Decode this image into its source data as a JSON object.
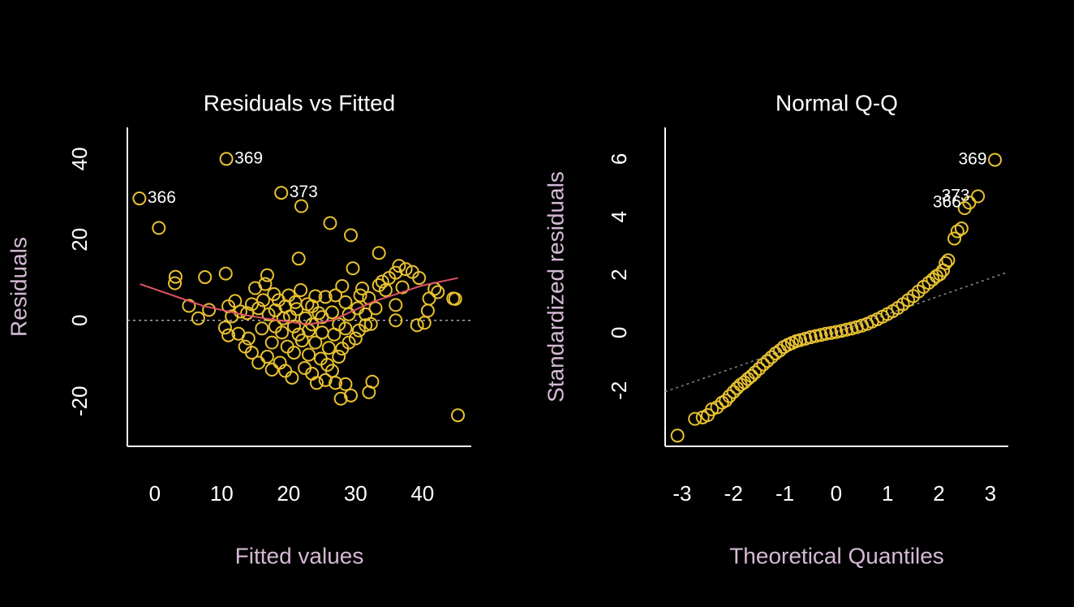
{
  "chart_data": [
    {
      "type": "scatter",
      "title": "Residuals vs Fitted",
      "x_label": "Fitted values",
      "y_label": "Residuals",
      "xlim": [
        -4.1,
        47.3
      ],
      "ylim": [
        -31.2,
        47.8
      ],
      "xticks": [
        0,
        10,
        20,
        30,
        40
      ],
      "yticks": [
        -20,
        0,
        20,
        40
      ],
      "color": "#e8c130",
      "x": [
        -2.3,
        10.7,
        18.9,
        0.6,
        21.9,
        26.2,
        29.3,
        21.5,
        33.5,
        45.3,
        29.3,
        27.8,
        32.5,
        32.0,
        3.0,
        3.1,
        7.5,
        10.6,
        5.1,
        6.5,
        8.1,
        44.6,
        44.9,
        41.0,
        40.8,
        40.3,
        39.2,
        36.0,
        36.0,
        36.5,
        37.5,
        38.5,
        39.5,
        37.0,
        41.8,
        42.3,
        35.0,
        34.0,
        33.5,
        34.5,
        36.0,
        31.0,
        30.7,
        32.0,
        29.6,
        30.3,
        31.5,
        32.3,
        28.0,
        29.0,
        30.0,
        27.5,
        26.5,
        25.5,
        24.2,
        23.5,
        22.4,
        20.5,
        19.5,
        18.7,
        17.5,
        16.8,
        15.5,
        14.5,
        13.5,
        12.5,
        11.0,
        10.5,
        11.5,
        11.0,
        12.0,
        12.8,
        13.8,
        14.5,
        15.0,
        16.5,
        16.8,
        17.8,
        18.5,
        19.5,
        20.2,
        20.8,
        21.2,
        21.8,
        22.5,
        23.0,
        23.5,
        24.0,
        24.5,
        25.0,
        25.5,
        26.0,
        26.5,
        27.0,
        27.5,
        28.5,
        28.0,
        29.0,
        19.0,
        18.0,
        17.0,
        16.0,
        15.5,
        14.0,
        17.5,
        19.8,
        20.8,
        22.0,
        23.0,
        24.8,
        25.8,
        21.0,
        20.0,
        18.0,
        22.8,
        24.0,
        16.2,
        19.2,
        21.5,
        23.5,
        25.0,
        26.8,
        28.5,
        30.5,
        31.5,
        33.0,
        27.0,
        28.5
      ],
      "values": [
        30.2,
        40,
        31.6,
        22.9,
        28.3,
        24.1,
        21.1,
        15.3,
        16.7,
        -23.5,
        -18.6,
        -19.4,
        -15.2,
        -17.8,
        9.2,
        10.8,
        10.7,
        11.6,
        3.6,
        0.5,
        2.6,
        5.4,
        5.3,
        5.4,
        2.4,
        -0.6,
        -1.2,
        0,
        3.8,
        13.5,
        12.7,
        12,
        10.5,
        8.2,
        7.8,
        7,
        10.5,
        9.6,
        8.7,
        7.5,
        11.8,
        7.9,
        6.2,
        5.5,
        12.9,
        3.0,
        -1.2,
        -0.9,
        -7,
        -5.5,
        -4.5,
        -9,
        -12.5,
        -14.8,
        -15.5,
        -13.2,
        -11.8,
        -14.2,
        -12.5,
        -10.5,
        -12.2,
        -9,
        -10.5,
        -8,
        -6.5,
        -3.3,
        -3.7,
        -1.8,
        1,
        3.5,
        4.8,
        2.2,
        1.8,
        4.0,
        8.0,
        9.0,
        11.2,
        6.5,
        5.0,
        3.5,
        1.0,
        -1.5,
        2.8,
        7.5,
        0.5,
        -2.5,
        3.5,
        -5.5,
        1.8,
        -3.0,
        5.8,
        -6.8,
        2.0,
        6.2,
        -1.0,
        4.5,
        8.5,
        1.5,
        -3.0,
        -1.5,
        1.5,
        -2.0,
        3.0,
        -4.5,
        -5.5,
        -6.5,
        -8.0,
        -5.0,
        -8.5,
        -9.5,
        -11.0,
        4.5,
        6.2,
        2.5,
        4.0,
        6.0,
        5.0,
        0.5,
        -3.5,
        -1.0,
        0.8,
        -3.5,
        -2.0,
        -2.5,
        1.5,
        3.0,
        -15.5,
        -15.8
      ],
      "smooth": {
        "color": "#df5366",
        "x": [
          -2.2,
          7.2,
          13.2,
          16.8,
          22.9,
          26.5,
          32.6,
          39.9,
          45.3
        ],
        "values": [
          9.0,
          3.6,
          1.4,
          0.4,
          -1.0,
          0,
          4.6,
          8.6,
          10.5
        ]
      },
      "reference_line": {
        "intercept": 0,
        "slope": 0,
        "color": "#aaaaaa"
      },
      "annotation_position": "right",
      "annotations": [
        {
          "text": "366",
          "x": -2.3,
          "y": 30.2
        },
        {
          "text": "369",
          "x": 10.7,
          "y": 40
        },
        {
          "text": "373",
          "x": 18.9,
          "y": 31.6
        }
      ]
    },
    {
      "type": "scatter",
      "title": "Normal Q-Q",
      "x_label": "Theoretical Quantiles",
      "y_label": "Standardized residuals",
      "xlim": [
        -3.33,
        3.35
      ],
      "ylim": [
        -3.93,
        7.09
      ],
      "xticks": [
        -3,
        -2,
        -1,
        0,
        1,
        2,
        3
      ],
      "yticks": [
        -2,
        0,
        2,
        4,
        6
      ],
      "color": "#e8c130",
      "x": [
        -3.09,
        -2.75,
        -2.6,
        -2.5,
        -2.42,
        -2.32,
        -2.22,
        -2.15,
        -2.08,
        -2.0,
        -1.93,
        -1.86,
        -1.79,
        -1.72,
        -1.65,
        -1.58,
        -1.5,
        -1.42,
        -1.34,
        -1.26,
        -1.18,
        -1.1,
        -1.02,
        -0.94,
        -0.86,
        -0.78,
        -0.7,
        -0.6,
        -0.5,
        -0.4,
        -0.3,
        -0.2,
        -0.1,
        0,
        0.1,
        0.2,
        0.3,
        0.4,
        0.5,
        0.6,
        0.7,
        0.8,
        0.9,
        1.0,
        1.1,
        1.2,
        1.3,
        1.4,
        1.5,
        1.6,
        1.7,
        1.8,
        1.88,
        1.95,
        2.02,
        2.08,
        2.13,
        2.18,
        2.3,
        2.36,
        2.44,
        2.5,
        2.59,
        2.76,
        3.09
      ],
      "values": [
        -3.56,
        -2.98,
        -2.93,
        -2.85,
        -2.65,
        -2.58,
        -2.42,
        -2.35,
        -2.2,
        -2.05,
        -1.92,
        -1.8,
        -1.72,
        -1.6,
        -1.5,
        -1.38,
        -1.25,
        -1.1,
        -0.98,
        -0.85,
        -0.72,
        -0.62,
        -0.5,
        -0.42,
        -0.36,
        -0.3,
        -0.26,
        -0.21,
        -0.16,
        -0.12,
        -0.08,
        -0.04,
        -0.01,
        0.02,
        0.06,
        0.1,
        0.14,
        0.19,
        0.24,
        0.3,
        0.38,
        0.46,
        0.55,
        0.64,
        0.74,
        0.85,
        0.98,
        1.12,
        1.26,
        1.42,
        1.58,
        1.72,
        1.84,
        1.95,
        2.02,
        2.15,
        2.4,
        2.5,
        3.25,
        3.5,
        3.6,
        4.3,
        4.49,
        4.71,
        5.97
      ],
      "reference_line": {
        "intercept": 0.02,
        "slope": 0.62,
        "color": "#888888"
      },
      "annotation_position": "left",
      "annotations": [
        {
          "text": "369",
          "x": 3.09,
          "y": 5.97
        },
        {
          "text": "373",
          "x": 2.76,
          "y": 4.71
        },
        {
          "text": "366",
          "x": 2.59,
          "y": 4.49
        }
      ]
    }
  ]
}
